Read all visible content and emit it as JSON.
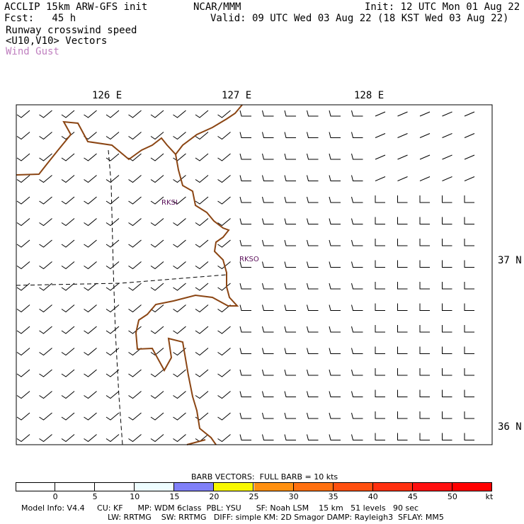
{
  "header": {
    "line1_left": "ACCLIP 15km ARW-GFS init",
    "line1_center": "NCAR/MMM",
    "line1_right": "Init: 12 UTC Mon 01 Aug 22",
    "line2_left": "Fcst:   45 h",
    "line2_right": "Valid: 09 UTC Wed 03 Aug 22 (18 KST Wed 03 Aug 22)",
    "line3": "Runway crosswind speed",
    "line4": "<U10,V10> Vectors",
    "line5": "Wind Gust",
    "line5_color": "#c080c0"
  },
  "map": {
    "lon_labels": [
      "126 E",
      "127 E",
      "128 E"
    ],
    "lat_labels": [
      "37 N",
      "36 N"
    ],
    "stations": [
      "RKSI",
      "RKSO"
    ],
    "station_color": "#5a0f5a",
    "coast_color": "#8b4513"
  },
  "colorbar": {
    "title": "BARB VECTORS:  FULL BARB = 10 kts",
    "ticks": [
      "0",
      "5",
      "10",
      "15",
      "20",
      "25",
      "30",
      "35",
      "40",
      "45",
      "50",
      "kt"
    ],
    "colors": [
      "#ffffff",
      "#ffffff",
      "#ffffff",
      "#eefdff",
      "#8080f8",
      "#f8f800",
      "#ff9010",
      "#ff7010",
      "#ff5010",
      "#ff3010",
      "#ff1010",
      "#ff0000"
    ]
  },
  "footer": {
    "line1": "Model Info: V4.4     CU: KF      MP: WDM 6class  PBL: YSU      SF: Noah LSM    15 km   51 levels   90 sec",
    "line2": "LW: RRTMG    SW: RRTMG   DIFF: simple KM: 2D Smagor DAMP: Rayleigh3  SFLAY: MM5"
  }
}
